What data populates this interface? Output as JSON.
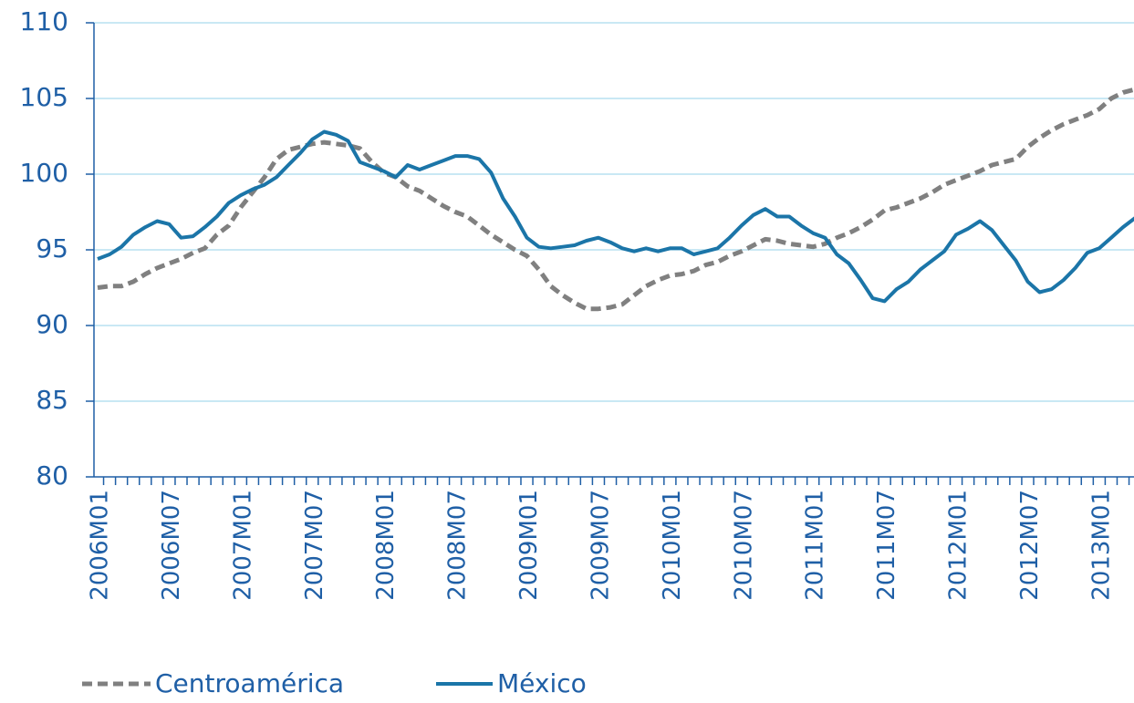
{
  "chart_data": {
    "type": "line",
    "categories": [
      "2006M01",
      null,
      null,
      null,
      null,
      null,
      "2006M07",
      null,
      null,
      null,
      null,
      null,
      "2007M01",
      null,
      null,
      null,
      null,
      null,
      "2007M07",
      null,
      null,
      null,
      null,
      null,
      "2008M01",
      null,
      null,
      null,
      null,
      null,
      "2008M07",
      null,
      null,
      null,
      null,
      null,
      "2009M01",
      null,
      null,
      null,
      null,
      null,
      "2009M07",
      null,
      null,
      null,
      null,
      null,
      "2010M01",
      null,
      null,
      null,
      null,
      null,
      "2010M07",
      null,
      null,
      null,
      null,
      null,
      "2011M01",
      null,
      null,
      null,
      null,
      null,
      "2011M07",
      null,
      null,
      null,
      null,
      null,
      "2012M01",
      null,
      null,
      null,
      null,
      null,
      "2012M07",
      null,
      null,
      null,
      null,
      null,
      "2013M01",
      null,
      null,
      null
    ],
    "series": [
      {
        "name": "Centroamérica",
        "color": "#808080",
        "dashed": true,
        "values": [
          92.5,
          92.6,
          92.6,
          92.9,
          93.4,
          93.8,
          94.1,
          94.4,
          94.8,
          95.1,
          96.0,
          96.6,
          97.8,
          98.8,
          99.8,
          101.0,
          101.6,
          101.8,
          102.0,
          102.1,
          102.0,
          101.9,
          101.7,
          100.8,
          100.1,
          99.8,
          99.2,
          98.9,
          98.4,
          97.9,
          97.5,
          97.2,
          96.6,
          96.0,
          95.5,
          95.0,
          94.6,
          93.7,
          92.6,
          92.0,
          91.5,
          91.1,
          91.1,
          91.2,
          91.4,
          92.0,
          92.6,
          93.0,
          93.3,
          93.4,
          93.6,
          94.0,
          94.2,
          94.6,
          94.9,
          95.3,
          95.7,
          95.6,
          95.4,
          95.3,
          95.2,
          95.4,
          95.8,
          96.1,
          96.5,
          97.0,
          97.6,
          97.8,
          98.1,
          98.4,
          98.8,
          99.3,
          99.6,
          99.9,
          100.2,
          100.6,
          100.8,
          101.0,
          101.8,
          102.4,
          102.9,
          103.3,
          103.6,
          103.9,
          104.3,
          105.0,
          105.4,
          105.6
        ]
      },
      {
        "name": "México",
        "color": "#1b75a8",
        "dashed": false,
        "values": [
          94.4,
          94.7,
          95.2,
          96.0,
          96.5,
          96.9,
          96.7,
          95.8,
          95.9,
          96.5,
          97.2,
          98.1,
          98.6,
          99.0,
          99.3,
          99.8,
          100.6,
          101.4,
          102.3,
          102.8,
          102.6,
          102.2,
          100.8,
          100.5,
          100.2,
          99.8,
          100.6,
          100.3,
          100.6,
          100.9,
          101.2,
          101.2,
          101.0,
          100.1,
          98.4,
          97.2,
          95.8,
          95.2,
          95.1,
          95.2,
          95.3,
          95.6,
          95.8,
          95.5,
          95.1,
          94.9,
          95.1,
          94.9,
          95.1,
          95.1,
          94.7,
          94.9,
          95.1,
          95.8,
          96.6,
          97.3,
          97.7,
          97.2,
          97.2,
          96.6,
          96.1,
          95.8,
          94.7,
          94.1,
          93.0,
          91.8,
          91.6,
          92.4,
          92.9,
          93.7,
          94.3,
          94.9,
          96.0,
          96.4,
          96.9,
          96.3,
          95.3,
          94.3,
          92.9,
          92.2,
          92.4,
          93.0,
          93.8,
          94.8,
          95.1,
          95.8,
          96.5,
          97.1
        ]
      }
    ],
    "ylim": [
      80,
      110
    ],
    "yticks": [
      80,
      85,
      90,
      95,
      100,
      105,
      110
    ],
    "grid": true,
    "legend": "bottom"
  }
}
